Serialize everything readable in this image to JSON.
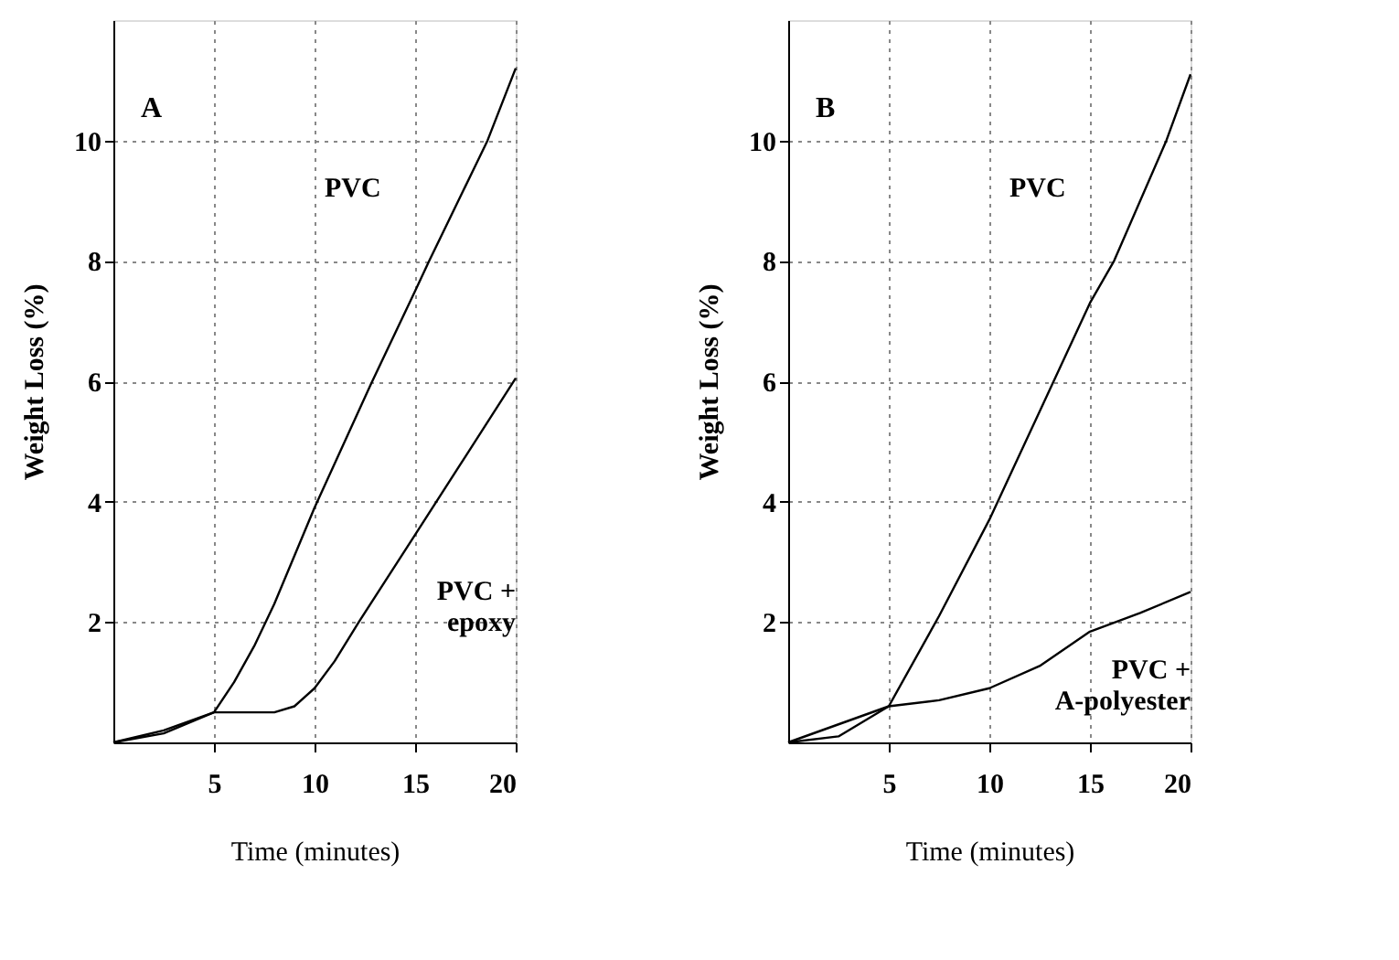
{
  "chart_data": [
    {
      "type": "line",
      "xlabel": "Time (minutes)",
      "ylabel": "Weight Loss (%)",
      "annotations": [
        "A"
      ],
      "xlim": [
        0,
        20
      ],
      "ylim": [
        0,
        12
      ],
      "xticks": [
        5,
        10,
        15,
        20
      ],
      "yticks": [
        2,
        4,
        6,
        8,
        10
      ],
      "grid": true,
      "legend": false,
      "marker": "none",
      "line_style": "solid",
      "series": [
        {
          "name": "PVC",
          "color": "#000000",
          "x": [
            0,
            2.5,
            5,
            6,
            7,
            8,
            10,
            12.8,
            15,
            15.7,
            18.6,
            20
          ],
          "values": [
            0,
            0.2,
            0.5,
            1.0,
            1.6,
            2.3,
            3.9,
            5.95,
            7.5,
            8.0,
            10.0,
            11.2
          ]
        },
        {
          "name": "PVC +\nepoxy",
          "color": "#000000",
          "x": [
            0,
            2.5,
            5,
            8,
            9,
            10,
            11,
            12.2,
            15,
            17.5,
            20
          ],
          "values": [
            0,
            0.15,
            0.5,
            0.5,
            0.6,
            0.9,
            1.35,
            2.0,
            3.45,
            4.75,
            6.05
          ]
        }
      ]
    },
    {
      "type": "line",
      "xlabel": "Time (minutes)",
      "ylabel": "Weight Loss (%)",
      "annotations": [
        "B"
      ],
      "xlim": [
        0,
        20
      ],
      "ylim": [
        0,
        12
      ],
      "xticks": [
        5,
        10,
        15,
        20
      ],
      "yticks": [
        2,
        4,
        6,
        8,
        10
      ],
      "grid": true,
      "legend": false,
      "marker": "none",
      "line_style": "solid",
      "series": [
        {
          "name": "PVC",
          "color": "#000000",
          "x": [
            0,
            2.5,
            5,
            7.5,
            10,
            12.5,
            15,
            16.2,
            18.8,
            20
          ],
          "values": [
            0,
            0.1,
            0.6,
            2.1,
            3.7,
            5.5,
            7.3,
            8.0,
            10.0,
            11.1
          ]
        },
        {
          "name": "PVC +\nA-polyester",
          "color": "#000000",
          "x": [
            0,
            5,
            7.5,
            10,
            12.5,
            15,
            17.5,
            20
          ],
          "values": [
            0,
            0.6,
            0.7,
            0.9,
            1.27,
            1.84,
            2.15,
            2.5
          ]
        }
      ]
    }
  ]
}
